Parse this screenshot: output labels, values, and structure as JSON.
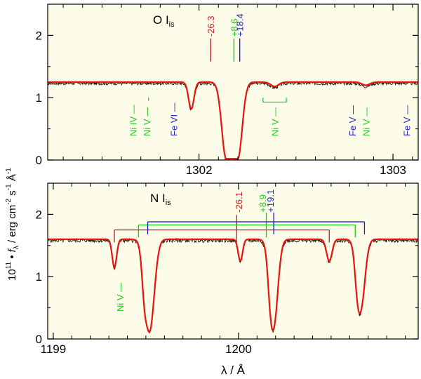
{
  "y_label_main": "10",
  "y_label_exp": "11",
  "y_label_rest": " • f",
  "y_label_sub": "λ",
  "y_label_units": " / erg cm",
  "y_label_units_exp1": "-2",
  "y_label_s": " s",
  "y_label_units_exp2": "-1",
  "y_label_a": " Å",
  "y_label_units_exp3": "-1",
  "x_label": "λ / Å",
  "colors": {
    "background": "#fdfce8",
    "model": "#e8130f",
    "observation": "#000000",
    "red_mark": "#c81e1e",
    "green_mark": "#19c819",
    "blue_mark": "#1e1ec8"
  },
  "chart_data": [
    {
      "type": "line",
      "panel": "top",
      "title_element": "O I",
      "title_sub": "is",
      "xlim": [
        1301.22,
        1303.13
      ],
      "ylim": [
        0,
        2.5
      ],
      "x_ticks": [
        1302,
        1303
      ],
      "y_ticks": [
        0,
        1,
        2
      ],
      "continuum": 1.25,
      "series": [
        {
          "name": "model",
          "lines": [
            {
              "center": 1301.96,
              "depth": 0.43,
              "width": 0.014
            },
            {
              "center": 1302.17,
              "depth": 1.23,
              "width": 0.038,
              "flat": 0.06
            },
            {
              "center": 1302.39,
              "depth": 0.07,
              "width": 0.02
            },
            {
              "center": 1302.86,
              "depth": 0.05,
              "width": 0.02
            }
          ]
        },
        {
          "name": "observation",
          "noise": 0.025,
          "seed": 17
        }
      ],
      "velocity_marks": [
        {
          "label": "-26.3",
          "x": 1302.06,
          "color": "red"
        },
        {
          "label": "+8.6",
          "x": 1302.18,
          "color": "green"
        },
        {
          "label": "+18.4",
          "x": 1302.21,
          "color": "blue"
        }
      ],
      "line_ids": [
        {
          "label": "Ni IV",
          "x": 1301.66,
          "color": "green"
        },
        {
          "label": "Ni V",
          "x": 1301.73,
          "color": "green"
        },
        {
          "label": "Fe VI",
          "x": 1301.87,
          "color": "blue"
        },
        {
          "label": "Ni V",
          "x": 1302.39,
          "color": "green"
        },
        {
          "label": "Fe V",
          "x": 1302.79,
          "color": "blue"
        },
        {
          "label": "Ni V",
          "x": 1302.86,
          "color": "green"
        },
        {
          "label": "Fe V",
          "x": 1303.07,
          "color": "blue"
        }
      ]
    },
    {
      "type": "line",
      "panel": "bottom",
      "title_element": "N I",
      "title_sub": "is",
      "xlim": [
        1198.97,
        1200.97
      ],
      "ylim": [
        0,
        2.5
      ],
      "x_ticks": [
        1199,
        1200
      ],
      "y_ticks": [
        0,
        1,
        2
      ],
      "continuum": 1.6,
      "series": [
        {
          "name": "model",
          "lines": [
            {
              "center": 1199.33,
              "depth": 0.45,
              "width": 0.012
            },
            {
              "center": 1199.52,
              "depth": 1.47,
              "width": 0.025
            },
            {
              "center": 1199.49,
              "depth": 0.35,
              "width": 0.012
            },
            {
              "center": 1200.01,
              "depth": 0.35,
              "width": 0.012
            },
            {
              "center": 1200.19,
              "depth": 1.38,
              "width": 0.022
            },
            {
              "center": 1200.17,
              "depth": 0.25,
              "width": 0.012
            },
            {
              "center": 1200.49,
              "depth": 0.35,
              "width": 0.015
            },
            {
              "center": 1200.66,
              "depth": 1.1,
              "width": 0.022
            },
            {
              "center": 1200.64,
              "depth": 0.25,
              "width": 0.012
            }
          ]
        },
        {
          "name": "observation",
          "noise": 0.03,
          "seed": 5
        }
      ],
      "velocity_labels": [
        {
          "label": "-26.1",
          "x": 1200.0,
          "color": "red"
        },
        {
          "label": "+8.9",
          "x": 1200.13,
          "color": "green"
        },
        {
          "label": "+19.1",
          "x": 1200.17,
          "color": "blue"
        }
      ],
      "brackets": [
        {
          "color": "red",
          "y": 1.75,
          "xs": [
            1199.33,
            1199.99,
            1200.49
          ],
          "top": 1.99
        },
        {
          "color": "green",
          "y": 1.83,
          "xs": [
            1199.46,
            1200.15,
            1200.63
          ],
          "top": 2.03
        },
        {
          "color": "blue",
          "y": 1.88,
          "xs": [
            1199.51,
            1200.19,
            1200.68
          ],
          "top": 2.03
        }
      ],
      "line_ids": [
        {
          "label": "Ni V",
          "x": 1199.36,
          "color": "green"
        }
      ]
    }
  ]
}
